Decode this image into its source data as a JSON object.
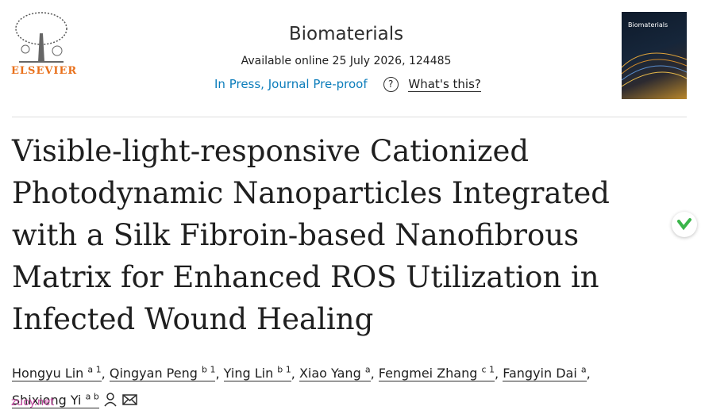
{
  "header": {
    "publisher": "ELSEVIER",
    "journal": "Biomaterials",
    "availability": "Available online 25 July 2026, 124485",
    "status": "In Press, Journal Pre-proof",
    "help_link": "What's this?",
    "cover_title": "Biomaterials"
  },
  "article": {
    "title": "Visible-light-responsive Cationized Photodynamic Nanoparticles Integrated with a Silk Fibroin-based Nanofibrous Matrix for Enhanced ROS Utilization in Infected Wound Healing",
    "author_separator": ",",
    "authors": [
      {
        "name": "Hongyu Lin",
        "affiliations": "a 1"
      },
      {
        "name": "Qingyan Peng",
        "affiliations": "b 1"
      },
      {
        "name": "Ying Lin",
        "affiliations": "b 1"
      },
      {
        "name": "Xiao Yang",
        "affiliations": "a"
      },
      {
        "name": "Fengmei Zhang",
        "affiliations": "c 1"
      },
      {
        "name": "Fangyin Dai",
        "affiliations": "a"
      },
      {
        "name": "Shixiong Yi",
        "affiliations": "a b"
      }
    ]
  },
  "watermark": "zuoy.net"
}
